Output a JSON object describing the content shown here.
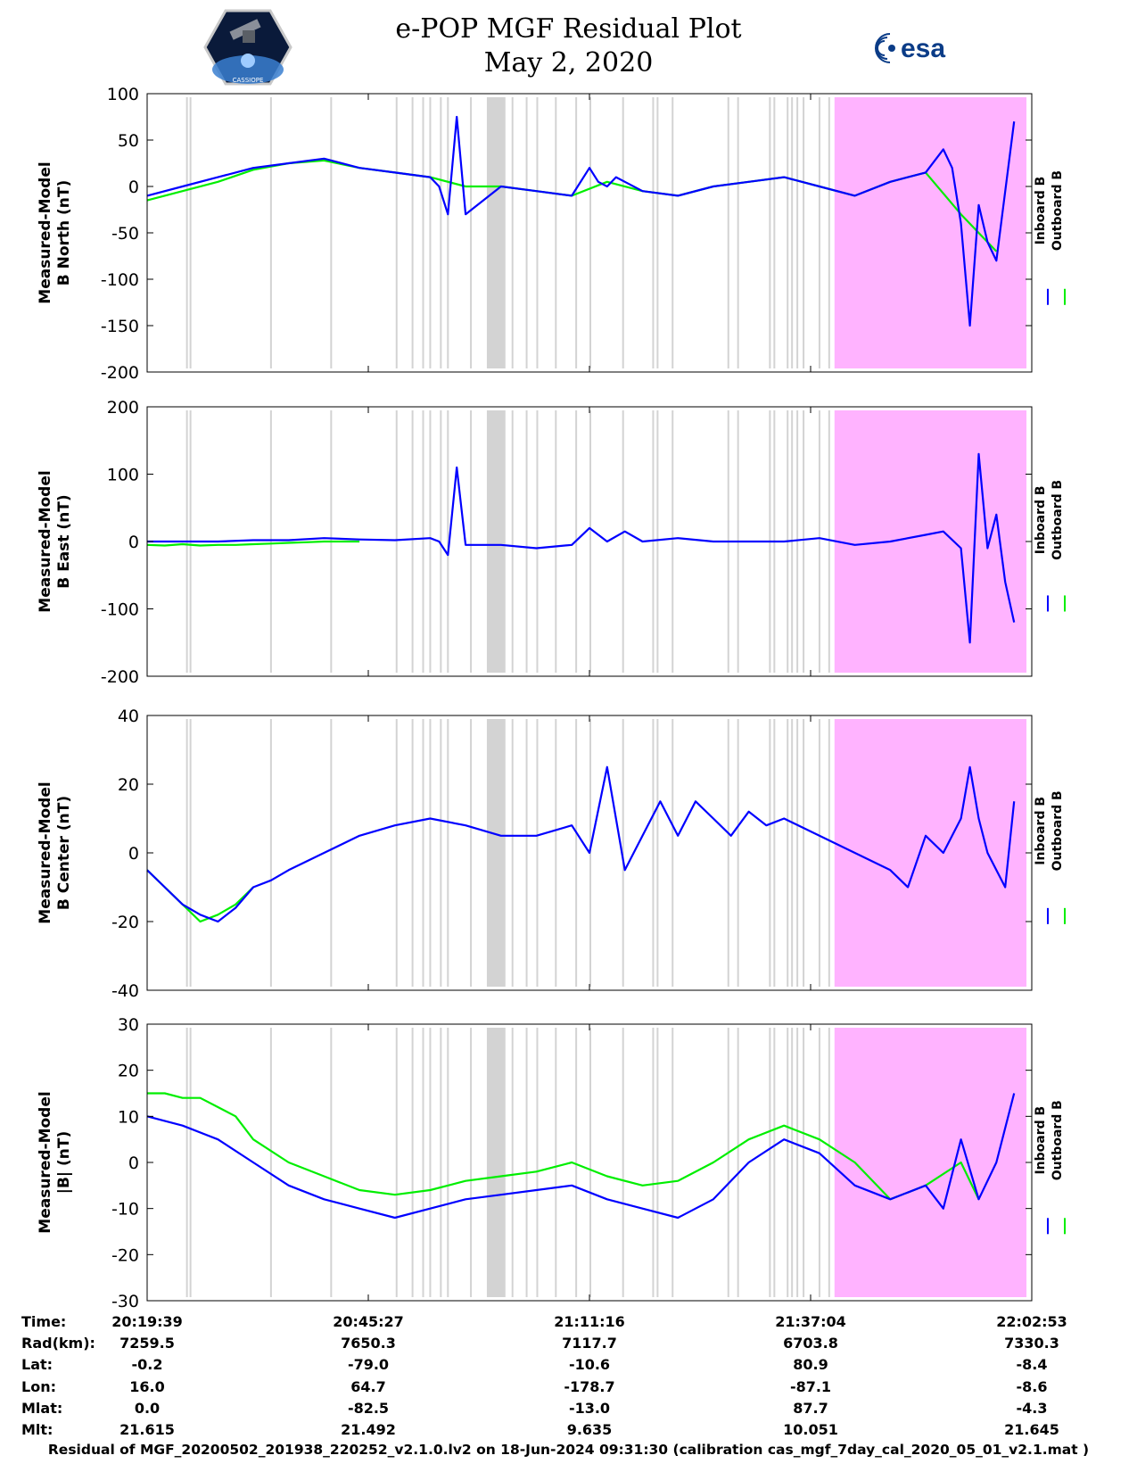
{
  "header": {
    "title_line1": "e-POP MGF Residual Plot",
    "title_line2": "May 2, 2020",
    "left_logo": "cassiope-mission-patch",
    "left_logo_text": "CASSIOPE",
    "right_logo_text": "esa"
  },
  "legend": {
    "inboard": "Inboard B",
    "outboard": "Outboard B"
  },
  "colors": {
    "inboard": "#0000ff",
    "outboard": "#00ee00",
    "flag_band": "#d3d3d3",
    "gap_fill": "#ffb3ff",
    "axis": "#000000"
  },
  "chart_data": [
    {
      "type": "line",
      "ylabel_line1": "Measured-Model",
      "ylabel_line2": "B North (nT)",
      "ylim": [
        -200,
        100
      ],
      "yticks": [
        "100",
        "50",
        "0",
        "-50",
        "-100",
        "-150",
        "-200"
      ],
      "series": [
        {
          "name": "Inboard B",
          "x": [
            0,
            4,
            8,
            12,
            16,
            20,
            24,
            28,
            32,
            33,
            34,
            35,
            36,
            40,
            44,
            48,
            50,
            51,
            52,
            53,
            54,
            56,
            60,
            64,
            68,
            72,
            76,
            80,
            84,
            88,
            90,
            91,
            92,
            93,
            94,
            95,
            96,
            98
          ],
          "y": [
            -10,
            0,
            10,
            20,
            25,
            30,
            20,
            15,
            10,
            0,
            -30,
            75,
            -30,
            0,
            -5,
            -10,
            20,
            5,
            0,
            10,
            5,
            -5,
            -10,
            0,
            5,
            10,
            0,
            -10,
            5,
            15,
            40,
            20,
            -40,
            -150,
            -20,
            -60,
            -80,
            70
          ]
        },
        {
          "name": "Outboard B",
          "x": [
            0,
            4,
            8,
            12,
            16,
            20,
            24,
            28,
            32,
            36,
            40,
            44,
            48,
            52,
            56,
            60,
            64,
            68,
            72,
            76,
            80,
            84,
            88,
            92,
            96
          ],
          "y": [
            -15,
            -5,
            5,
            18,
            25,
            28,
            20,
            15,
            10,
            0,
            0,
            -5,
            -10,
            5,
            -5,
            -10,
            0,
            5,
            10,
            0,
            -10,
            5,
            15,
            -30,
            -70
          ]
        }
      ]
    },
    {
      "type": "line",
      "ylabel_line1": "Measured-Model",
      "ylabel_line2": "B East (nT)",
      "ylim": [
        -200,
        200
      ],
      "yticks": [
        "200",
        "100",
        "0",
        "-100",
        "-200"
      ],
      "series": [
        {
          "name": "Inboard B",
          "x": [
            0,
            4,
            8,
            12,
            16,
            20,
            24,
            28,
            32,
            33,
            34,
            35,
            36,
            40,
            44,
            48,
            50,
            52,
            54,
            56,
            60,
            64,
            68,
            72,
            76,
            80,
            84,
            88,
            90,
            92,
            93,
            94,
            95,
            96,
            97,
            98
          ],
          "y": [
            0,
            0,
            0,
            2,
            2,
            5,
            3,
            2,
            5,
            0,
            -20,
            110,
            -5,
            -5,
            -10,
            -5,
            20,
            0,
            15,
            0,
            5,
            0,
            0,
            0,
            5,
            -5,
            0,
            10,
            15,
            -10,
            -150,
            130,
            -10,
            40,
            -60,
            -120
          ]
        },
        {
          "name": "Outboard B",
          "x": [
            0,
            2,
            4,
            6,
            8,
            10,
            12,
            14,
            16,
            18,
            20,
            22,
            24
          ],
          "y": [
            -5,
            -6,
            -4,
            -6,
            -5,
            -5,
            -4,
            -3,
            -2,
            -1,
            0,
            0,
            0
          ]
        }
      ]
    },
    {
      "type": "line",
      "ylabel_line1": "Measured-Model",
      "ylabel_line2": "B Center (nT)",
      "ylim": [
        -40,
        40
      ],
      "yticks": [
        "40",
        "20",
        "0",
        "-20",
        "-40"
      ],
      "series": [
        {
          "name": "Inboard B",
          "x": [
            0,
            2,
            4,
            6,
            8,
            10,
            12,
            14,
            16,
            20,
            24,
            28,
            32,
            36,
            40,
            44,
            48,
            50,
            52,
            54,
            56,
            58,
            60,
            62,
            64,
            66,
            68,
            70,
            72,
            76,
            80,
            84,
            86,
            88,
            90,
            92,
            93,
            94,
            95,
            96,
            97,
            98
          ],
          "y": [
            -5,
            -10,
            -15,
            -18,
            -20,
            -16,
            -10,
            -8,
            -5,
            0,
            5,
            8,
            10,
            8,
            5,
            5,
            8,
            0,
            25,
            -5,
            5,
            15,
            5,
            15,
            10,
            5,
            12,
            8,
            10,
            5,
            0,
            -5,
            -10,
            5,
            0,
            10,
            25,
            10,
            0,
            -5,
            -10,
            15
          ]
        },
        {
          "name": "Outboard B",
          "x": [
            0,
            2,
            4,
            6,
            8,
            10,
            12
          ],
          "y": [
            -5,
            -10,
            -15,
            -20,
            -18,
            -15,
            -10
          ]
        }
      ]
    },
    {
      "type": "line",
      "ylabel_line1": "Measured-Model",
      "ylabel_line2": "|B| (nT)",
      "ylim": [
        -30,
        30
      ],
      "yticks": [
        "30",
        "20",
        "10",
        "0",
        "-10",
        "-20",
        "-30"
      ],
      "series": [
        {
          "name": "Inboard B",
          "x": [
            0,
            4,
            8,
            12,
            16,
            20,
            24,
            28,
            32,
            36,
            40,
            44,
            48,
            52,
            56,
            60,
            64,
            68,
            72,
            76,
            80,
            84,
            88,
            90,
            92,
            94,
            96,
            98
          ],
          "y": [
            10,
            8,
            5,
            0,
            -5,
            -8,
            -10,
            -12,
            -10,
            -8,
            -7,
            -6,
            -5,
            -8,
            -10,
            -12,
            -8,
            0,
            5,
            2,
            -5,
            -8,
            -5,
            -10,
            5,
            -8,
            0,
            15
          ]
        },
        {
          "name": "Outboard B",
          "x": [
            0,
            2,
            4,
            6,
            8,
            10,
            12,
            16,
            20,
            24,
            28,
            32,
            36,
            40,
            44,
            48,
            52,
            56,
            60,
            64,
            68,
            72,
            76,
            80,
            84,
            88,
            92,
            94
          ],
          "y": [
            15,
            15,
            14,
            14,
            12,
            10,
            5,
            0,
            -3,
            -6,
            -7,
            -6,
            -4,
            -3,
            -2,
            0,
            -3,
            -5,
            -4,
            0,
            5,
            8,
            5,
            0,
            -8,
            -5,
            0,
            -8
          ]
        }
      ]
    }
  ],
  "xaxis": {
    "xlim": [
      0,
      100
    ],
    "tick_positions": [
      0,
      25,
      50,
      75,
      100
    ],
    "row_labels": [
      "Time:",
      "Rad(km):",
      "Lat:",
      "Lon:",
      "Mlat:",
      "Mlt:"
    ],
    "columns": [
      {
        "Time": "20:19:39",
        "Rad": "7259.5",
        "Lat": "-0.2",
        "Lon": "16.0",
        "Mlat": "0.0",
        "Mlt": "21.615"
      },
      {
        "Time": "20:45:27",
        "Rad": "7650.3",
        "Lat": "-79.0",
        "Lon": "64.7",
        "Mlat": "-82.5",
        "Mlt": "21.492"
      },
      {
        "Time": "21:11:16",
        "Rad": "7117.7",
        "Lat": "-10.6",
        "Lon": "-178.7",
        "Mlat": "-13.0",
        "Mlt": "9.635"
      },
      {
        "Time": "21:37:04",
        "Rad": "6703.8",
        "Lat": "80.9",
        "Lon": "-87.1",
        "Mlat": "87.7",
        "Mlt": "10.051"
      },
      {
        "Time": "22:02:53",
        "Rad": "7330.3",
        "Lat": "-8.4",
        "Lon": "-8.6",
        "Mlat": "-4.3",
        "Mlt": "21.645"
      }
    ]
  },
  "flag_bands": [
    4.5,
    4.9,
    14,
    20.8,
    28.2,
    30,
    31.2,
    32,
    33.2,
    34,
    36.6,
    38.5,
    40.4,
    41.3,
    42.9,
    44.1,
    46.2,
    48.5,
    50.1,
    53.8,
    57.2,
    57.7,
    59.4,
    65.7,
    66.8,
    70.4,
    70.9,
    72.4,
    72.9,
    73.5,
    74.2,
    76,
    77.1,
    78.5,
    79.4,
    80.5,
    82.8,
    83,
    85.2,
    86.3,
    89.5,
    90.1,
    91.2,
    92.1
  ],
  "flag_wide": [
    38.5,
    40.4
  ],
  "gap_region": [
    77.7,
    99.4
  ],
  "footer": "Residual of MGF_20200502_201938_220252_v2.1.0.lv2 on 18-Jun-2024 09:31:30 (calibration cas_mgf_7day_cal_2020_05_01_v2.1.mat )"
}
